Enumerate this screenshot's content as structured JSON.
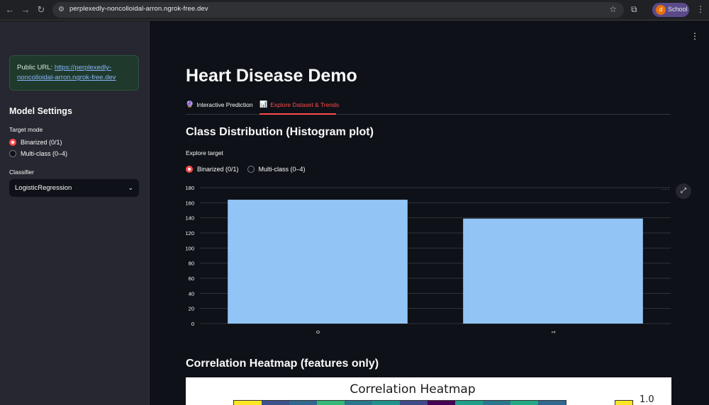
{
  "browser": {
    "url": "perplexedly-noncolloidal-arron.ngrok-free.dev",
    "profile_initial": "d",
    "profile_name": "School"
  },
  "sidebar": {
    "public_url_label": "Public URL:",
    "public_url_link": "https://perplexedly-noncolloidal-arron.ngrok-free.dev",
    "heading": "Model Settings",
    "target_mode_label": "Target mode",
    "target_options": [
      "Binarized (0/1)",
      "Multi-class (0–4)"
    ],
    "target_selected": 0,
    "classifier_label": "Classifier",
    "classifier_value": "LogisticRegression"
  },
  "main": {
    "title": "Heart Disease Demo",
    "tabs": [
      {
        "label": "Interactive Prediction",
        "icon": "crystal-ball-icon"
      },
      {
        "label": "Explore Dataset & Trends",
        "icon": "bar-chart-icon"
      }
    ],
    "active_tab": 1,
    "section1_title": "Class Distribution (Histogram plot)",
    "explore_label": "Explore target",
    "explore_options": [
      "Binarized (0/1)",
      "Multi-class (0–4)"
    ],
    "section2_title": "Correlation Heatmap (features only)",
    "heatmap_title": "Correlation Heatmap",
    "heatmap_cbar_max": "1.0"
  },
  "colors": {
    "accent": "#ff4b4b",
    "bar": "#92c5f6",
    "link": "#8ab4f8"
  },
  "chart_data": {
    "type": "bar",
    "categories": [
      "0",
      "1"
    ],
    "values": [
      164,
      139
    ],
    "ylim": [
      0,
      180
    ],
    "yticks": [
      0,
      20,
      40,
      60,
      80,
      100,
      120,
      140,
      160,
      180
    ],
    "grid": true
  }
}
